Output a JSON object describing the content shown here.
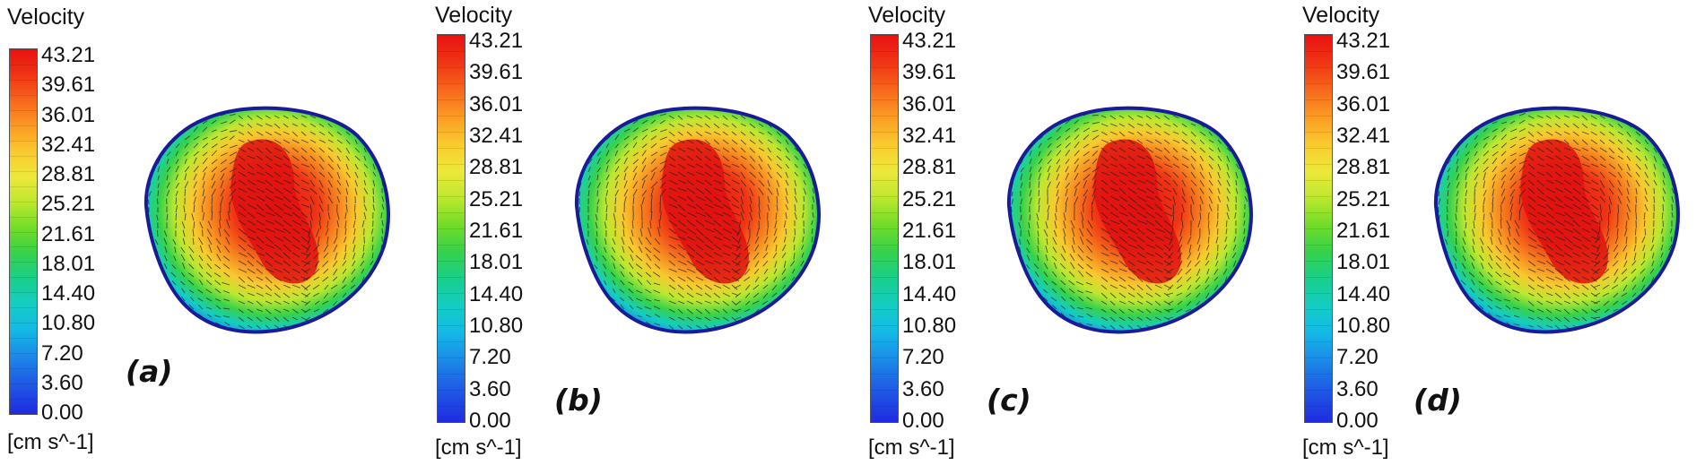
{
  "colorbar": {
    "title": "Velocity",
    "unit": "[cm s^-1]",
    "ticks": [
      "43.21",
      "39.61",
      "36.01",
      "32.41",
      "28.81",
      "25.21",
      "21.61",
      "18.01",
      "14.40",
      "10.80",
      "7.20",
      "3.60",
      "0.00"
    ],
    "colors": [
      "#e81212",
      "#f7661c",
      "#f9c92e",
      "#bde82f",
      "#35d24b",
      "#14cdc3",
      "#1b8ae8",
      "#1f2be0"
    ]
  },
  "panels": [
    {
      "label": "(a)"
    },
    {
      "label": "(b)"
    },
    {
      "label": "(c)"
    },
    {
      "label": "(d)"
    }
  ]
}
